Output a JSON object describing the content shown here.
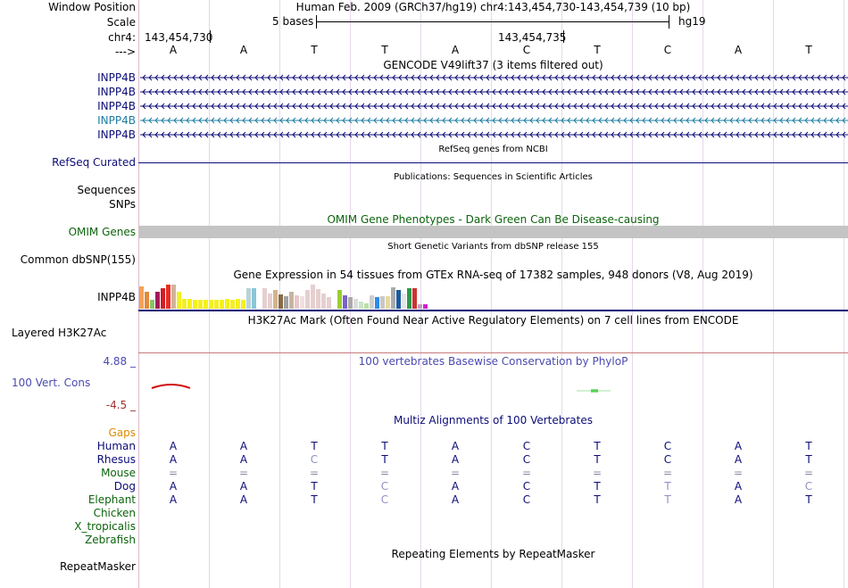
{
  "header": {
    "window_position_label": "Window Position",
    "window_position_value": "Human Feb. 2009 (GRCh37/hg19)   chr4:143,454,730-143,454,739 (10 bp)",
    "scale_label": "Scale",
    "scale_value": "5 bases",
    "scale_assembly": "hg19",
    "chrom_label": "chr4:",
    "coord_left": "143,454,730",
    "coord_mid": "143,454,735",
    "strand_label": "--->",
    "bases": [
      "A",
      "A",
      "T",
      "T",
      "A",
      "C",
      "T",
      "C",
      "A",
      "T"
    ]
  },
  "tracks": {
    "gencode": {
      "title": "GENCODE V49lift37 (3 items filtered out)",
      "items": [
        "INPP4B",
        "INPP4B",
        "INPP4B",
        "INPP4B",
        "INPP4B"
      ],
      "colors": [
        "#0c0c78",
        "#0c0c78",
        "#0c0c78",
        "#1d7ca0",
        "#0c0c78"
      ]
    },
    "refseq": {
      "title": "RefSeq genes from NCBI",
      "label": "RefSeq Curated"
    },
    "publications": {
      "title": "Publications: Sequences in Scientific Articles",
      "labels": [
        "Sequences",
        "SNPs"
      ]
    },
    "omim": {
      "title": "OMIM Gene Phenotypes - Dark Green Can Be Disease-causing",
      "label": "OMIM Genes"
    },
    "dbsnp": {
      "title": "Short Genetic Variants from dbSNP release 155",
      "label": "Common dbSNP(155)"
    },
    "gtex": {
      "title": "Gene Expression in 54 tissues from GTEx RNA-seq of 17382 samples, 948 donors (V8, Aug 2019)",
      "label": "INPP4B"
    },
    "h3k27ac": {
      "title": "H3K27Ac Mark (Often Found Near Active Regulatory Elements) on 7 cell lines from ENCODE",
      "label": "Layered H3K27Ac"
    },
    "conservation": {
      "title": "100 vertebrates Basewise Conservation by PhyloP",
      "label": "100 Vert. Cons",
      "max_label": "4.88 _",
      "min_label": "-4.5 _"
    },
    "multiz": {
      "title": "Multiz Alignments of 100 Vertebrates",
      "gaps_label": "Gaps",
      "species": [
        {
          "name": "Human",
          "bases": [
            "A",
            "A",
            "T",
            "T",
            "A",
            "C",
            "T",
            "C",
            "A",
            "T"
          ]
        },
        {
          "name": "Rhesus",
          "bases": [
            "A",
            "A",
            "C",
            "T",
            "A",
            "C",
            "T",
            "C",
            "A",
            "T"
          ]
        },
        {
          "name": "Mouse",
          "bases": [
            "=",
            "=",
            "=",
            "=",
            "=",
            "=",
            "=",
            "=",
            "=",
            "="
          ]
        },
        {
          "name": "Dog",
          "bases": [
            "A",
            "A",
            "T",
            "C",
            "A",
            "C",
            "T",
            "T",
            "A",
            "C"
          ]
        },
        {
          "name": "Elephant",
          "bases": [
            "A",
            "A",
            "T",
            "C",
            "A",
            "C",
            "T",
            "T",
            "A",
            "T"
          ]
        },
        {
          "name": "Chicken",
          "bases": []
        },
        {
          "name": "X_tropicalis",
          "bases": []
        },
        {
          "name": "Zebrafish",
          "bases": []
        }
      ]
    },
    "repeatmasker": {
      "title": "Repeating Elements by RepeatMasker",
      "label": "RepeatMasker"
    }
  },
  "chart_data": {
    "type": "bar",
    "title": "Gene Expression in 54 tissues from GTEx RNA-seq of 17382 samples, 948 donors (V8, Aug 2019)",
    "values": [
      26,
      20,
      10,
      20,
      24,
      28,
      28,
      20,
      11,
      11,
      10,
      10,
      10,
      10,
      10,
      10,
      11,
      10,
      11,
      10,
      24,
      24,
      0,
      24,
      18,
      22,
      17,
      14,
      20,
      16,
      14,
      22,
      28,
      23,
      18,
      13,
      0,
      22,
      16,
      13,
      11,
      8,
      6,
      16,
      13,
      14,
      14,
      25,
      22,
      18,
      24,
      24,
      5,
      5
    ],
    "colors": [
      "#f2a25a",
      "#e28a3c",
      "#8bc26a",
      "#a3195a",
      "#d01e2a",
      "#e82e20",
      "#cfb49c",
      "#f5f01e",
      "#f5f01e",
      "#f5f01e",
      "#f5f01e",
      "#f5f01e",
      "#f5f01e",
      "#f5f01e",
      "#f5f01e",
      "#f5f01e",
      "#f5f01e",
      "#f5f01e",
      "#f5f01e",
      "#f5f01e",
      "#b9d2d8",
      "#8ac6d8",
      "#ffffff",
      "#e6cfcf",
      "#e6cfcf",
      "#d2b48c",
      "#8a6a46",
      "#a0a0a0",
      "#c8b4a0",
      "#e6c8c8",
      "#f0e0e0",
      "#e6cfcf",
      "#e6cfcf",
      "#e6cfcf",
      "#e6cfcf",
      "#e6cfcf",
      "#ffffff",
      "#9acd32",
      "#7a64c8",
      "#aaaaaa",
      "#dddddd",
      "#c8e6c8",
      "#b9e1a0",
      "#cfcfcf",
      "#2e8be6",
      "#c8c8c8",
      "#e6d8a0",
      "#aaaaaa",
      "#1c5aa0",
      "#e6e6e6",
      "#2c9a4c",
      "#cc3333",
      "#c0a0c0",
      "#d020d0"
    ]
  },
  "conservation_data": {
    "type": "line",
    "ylim": [
      -4.5,
      4.88
    ]
  },
  "colors": {
    "ruler_text": "#000000",
    "gencode_blue": "#0c0c78",
    "omim_green": "#0c640c",
    "cons_blue": "#4a4ab0",
    "gaps_orange": "#dc8c00",
    "multiz_green": "#0c640c"
  }
}
